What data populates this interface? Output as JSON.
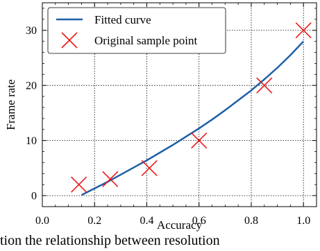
{
  "chart_data": {
    "type": "line",
    "xlabel": "Accuracy",
    "ylabel": "Frame rate",
    "xlim": [
      0.0,
      1.05
    ],
    "ylim": [
      -2,
      35
    ],
    "x_ticks": [
      0.0,
      0.2,
      0.4,
      0.6,
      0.8,
      1.0
    ],
    "x_tick_labels": [
      "0.0",
      "0.2",
      "0.4",
      "0.6",
      "0.8",
      "1.0"
    ],
    "y_ticks": [
      0,
      10,
      20,
      30
    ],
    "y_tick_labels": [
      "0",
      "10",
      "20",
      "30"
    ],
    "grid": true,
    "legend_position": "top-left",
    "series": [
      {
        "name": "Fitted curve",
        "kind": "line",
        "color": "#1f5fa8",
        "x": [
          0.15,
          0.2,
          0.25,
          0.3,
          0.35,
          0.4,
          0.45,
          0.5,
          0.55,
          0.6,
          0.65,
          0.7,
          0.75,
          0.8,
          0.85,
          0.9,
          0.95,
          1.0
        ],
        "y": [
          0.1,
          1.3,
          2.5,
          3.8,
          5.1,
          6.4,
          7.8,
          9.2,
          10.7,
          12.2,
          13.8,
          15.5,
          17.3,
          19.1,
          21.1,
          23.2,
          25.5,
          28.0
        ]
      },
      {
        "name": "Original sample point",
        "kind": "scatter",
        "marker": "x",
        "color": "#e8191c",
        "x": [
          0.14,
          0.26,
          0.41,
          0.6,
          0.85,
          1.0
        ],
        "y": [
          2,
          3,
          5,
          10,
          20,
          30
        ]
      }
    ]
  },
  "caption_partial": "tion the relationship between resolution"
}
